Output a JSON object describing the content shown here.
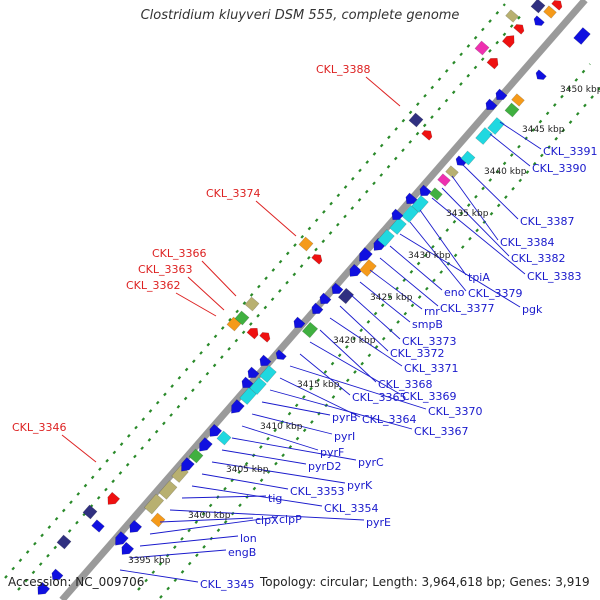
{
  "title": "Clostridium kluyveri DSM 555, complete genome",
  "footer": {
    "accession": "Accession: NC_009706",
    "stats": "Topology: circular; Length: 3,964,618 bp; Genes: 3,919"
  },
  "scale_labels": [
    "3395 kbp",
    "3400 kbp",
    "3405 kbp",
    "3410 kbp",
    "3415 kbp",
    "3420 kbp",
    "3425 kbp",
    "3430 kbp",
    "3435 kbp",
    "3440 kbp",
    "3445 kbp",
    "3450 kbp"
  ],
  "upper_labels": [
    "CKL_3388",
    "CKL_3374",
    "CKL_3366",
    "CKL_3363",
    "CKL_3362",
    "CKL_3346"
  ],
  "lower_labels": [
    "CKL_3391",
    "CKL_3390",
    "CKL_3387",
    "CKL_3384",
    "CKL_3382",
    "CKL_3383",
    "tpiA",
    "CKL_3379",
    "pgk",
    "eno",
    "CKL_3377",
    "rnr",
    "smpB",
    "CKL_3373",
    "CKL_3372",
    "CKL_3371",
    "CKL_3368",
    "CKL_3369",
    "CKL_3365",
    "CKL_3370",
    "CKL_3364",
    "CKL_3367",
    "pyrB",
    "pyrI",
    "pyrF",
    "pyrC",
    "pyrD2",
    "pyrK",
    "CKL_3353",
    "CKL_3354",
    "tig",
    "pyrE",
    "clpX",
    "clpP",
    "lon",
    "engB",
    "CKL_3345"
  ],
  "colors": {
    "backbone": "#9a9a9a",
    "gene_blue": "#1010e0",
    "gene_cyan": "#20d8e0",
    "gene_red": "#ee1111",
    "gene_orange": "#f59a1a",
    "gene_khaki": "#b8b070",
    "gene_green": "#40b040",
    "gene_pink": "#ee30b0",
    "gene_navy": "#303080",
    "dot_green": "#2a8a2a",
    "label_red": "#dd2222",
    "label_blue": "#1a1acc"
  }
}
